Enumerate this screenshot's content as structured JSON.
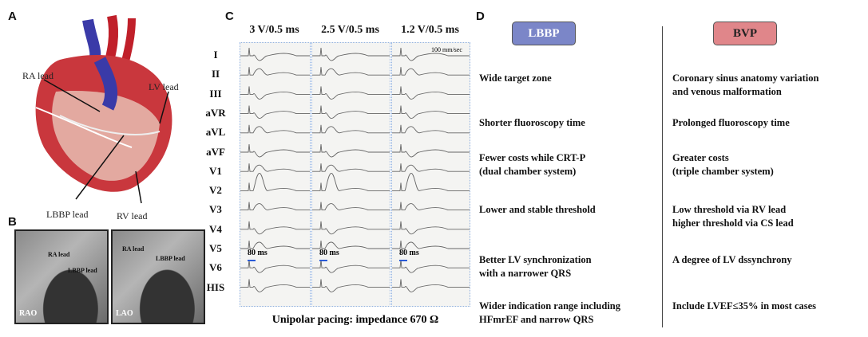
{
  "panels": {
    "a": "A",
    "b": "B",
    "c": "C",
    "d": "D"
  },
  "panel_a": {
    "labels": {
      "ra": "RA lead",
      "lv": "LV lead",
      "lbbp": "LBBP lead",
      "rv": "RV lead"
    }
  },
  "panel_b": {
    "rao": {
      "view": "RAO",
      "ra": "RA lead",
      "lbbp": "LBBP lead"
    },
    "lao": {
      "view": "LAO",
      "ra": "RA lead",
      "lbbp": "LBBP lead"
    }
  },
  "panel_c": {
    "columns": [
      "3 V/0.5 ms",
      "2.5 V/0.5 ms",
      "1.2 V/0.5 ms"
    ],
    "leads": [
      "I",
      "II",
      "III",
      "aVR",
      "aVL",
      "aVF",
      "V1",
      "V2",
      "V3",
      "V4",
      "V5",
      "V6",
      "HIS"
    ],
    "speed": "100 mm/sec",
    "marker": "80 ms",
    "marker_color": "#2a5bd7",
    "caption": "Unipolar pacing: impedance 670 Ω"
  },
  "panel_d": {
    "lbbp": {
      "label": "LBBP",
      "color": "#7b86c8"
    },
    "bvp": {
      "label": "BVP",
      "color": "#e0868a"
    },
    "rows": [
      {
        "lbbp": "Wide target zone",
        "bvp": "Coronary sinus anatomy variation\nand venous malformation"
      },
      {
        "lbbp": "Shorter fluoroscopy time",
        "bvp": "Prolonged fluoroscopy time"
      },
      {
        "lbbp": "Fewer costs while CRT-P\n(dual chamber system)",
        "bvp": "Greater costs\n(triple chamber system)"
      },
      {
        "lbbp": "Lower and stable threshold",
        "bvp": "Low threshold via RV lead\nhigher threshold via CS lead"
      },
      {
        "lbbp": "Better LV synchronization\nwith a narrower QRS",
        "bvp": "A degree of LV dssynchrony"
      },
      {
        "lbbp": "Wider indication range including\nHFmrEF and narrow QRS",
        "bvp": "Include LVEF≤35% in most cases"
      }
    ]
  }
}
